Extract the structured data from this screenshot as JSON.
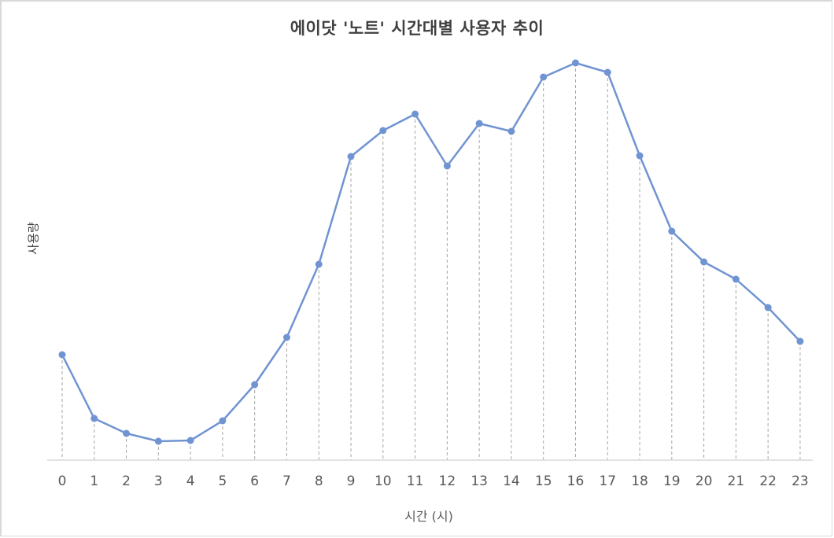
{
  "chart_data": {
    "type": "line",
    "title": "에이닷 '노트' 시간대별 사용자 추이",
    "xlabel": "시간 (시)",
    "ylabel": "사용량",
    "categories": [
      "0",
      "1",
      "2",
      "3",
      "4",
      "5",
      "6",
      "7",
      "8",
      "9",
      "10",
      "11",
      "12",
      "13",
      "14",
      "15",
      "16",
      "17",
      "18",
      "19",
      "20",
      "21",
      "22",
      "23"
    ],
    "series": [
      {
        "name": "사용량",
        "color": "#7094d2",
        "values": [
          134,
          53,
          34,
          24,
          25,
          50,
          96,
          156,
          249,
          386,
          419,
          440,
          374,
          428,
          418,
          487,
          505,
          493,
          387,
          291,
          252,
          230,
          194,
          151
        ]
      }
    ],
    "ylim": [
      0,
      510
    ],
    "y_ticks_visible": false,
    "grid": false,
    "drop_lines": true,
    "legend": "none"
  }
}
